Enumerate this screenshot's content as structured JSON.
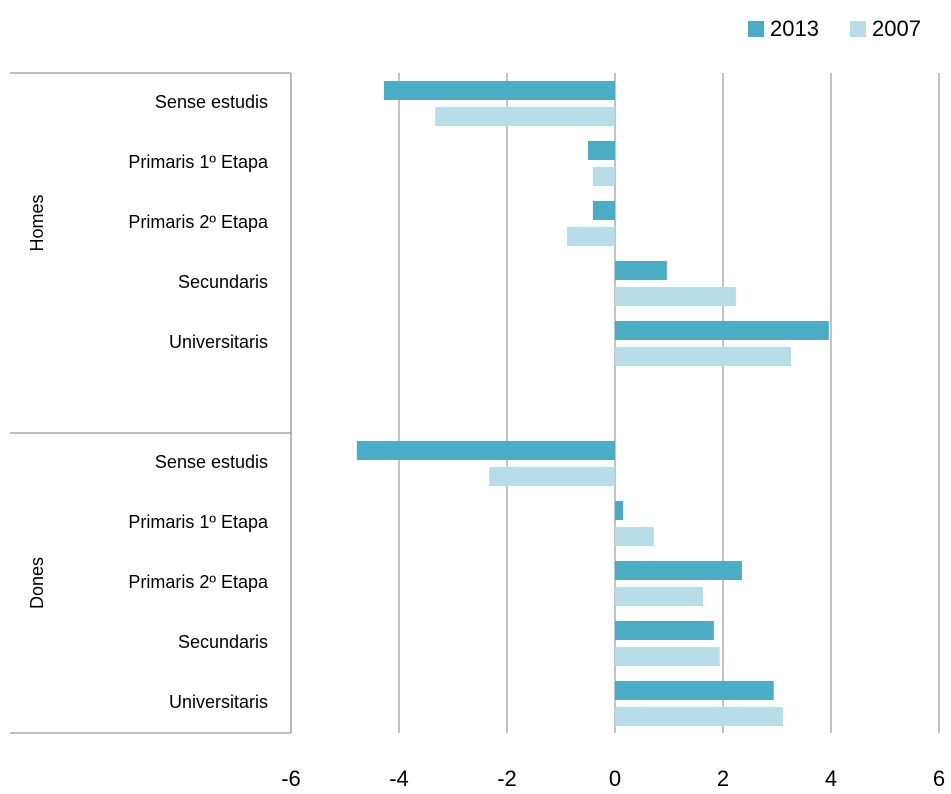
{
  "chart_data": {
    "type": "bar",
    "orientation": "horizontal",
    "groups": [
      "Homes",
      "Dones"
    ],
    "categories": [
      "Sense estudis",
      "Primaris 1º Etapa",
      "Primaris 2º Etapa",
      "Secundaris",
      "Universitaris",
      null,
      "Sense estudis",
      "Primaris 1º Etapa",
      "Primaris 2º Etapa",
      "Secundaris",
      "Universitaris"
    ],
    "series": [
      {
        "name": "2013",
        "color": "#4bacc6",
        "values": [
          -4.28,
          -0.5,
          -0.41,
          0.96,
          3.96,
          null,
          -4.78,
          0.15,
          2.35,
          1.83,
          2.94
        ]
      },
      {
        "name": "2007",
        "color": "#b7dee8",
        "values": [
          -3.33,
          -0.41,
          -0.89,
          2.24,
          3.26,
          null,
          -2.33,
          0.72,
          1.63,
          1.94,
          3.11
        ]
      }
    ],
    "xlim": [
      -6,
      6
    ],
    "xticks": [
      -6,
      -4,
      -2,
      0,
      2,
      4,
      6
    ],
    "grid": true,
    "legend": "top-right"
  }
}
